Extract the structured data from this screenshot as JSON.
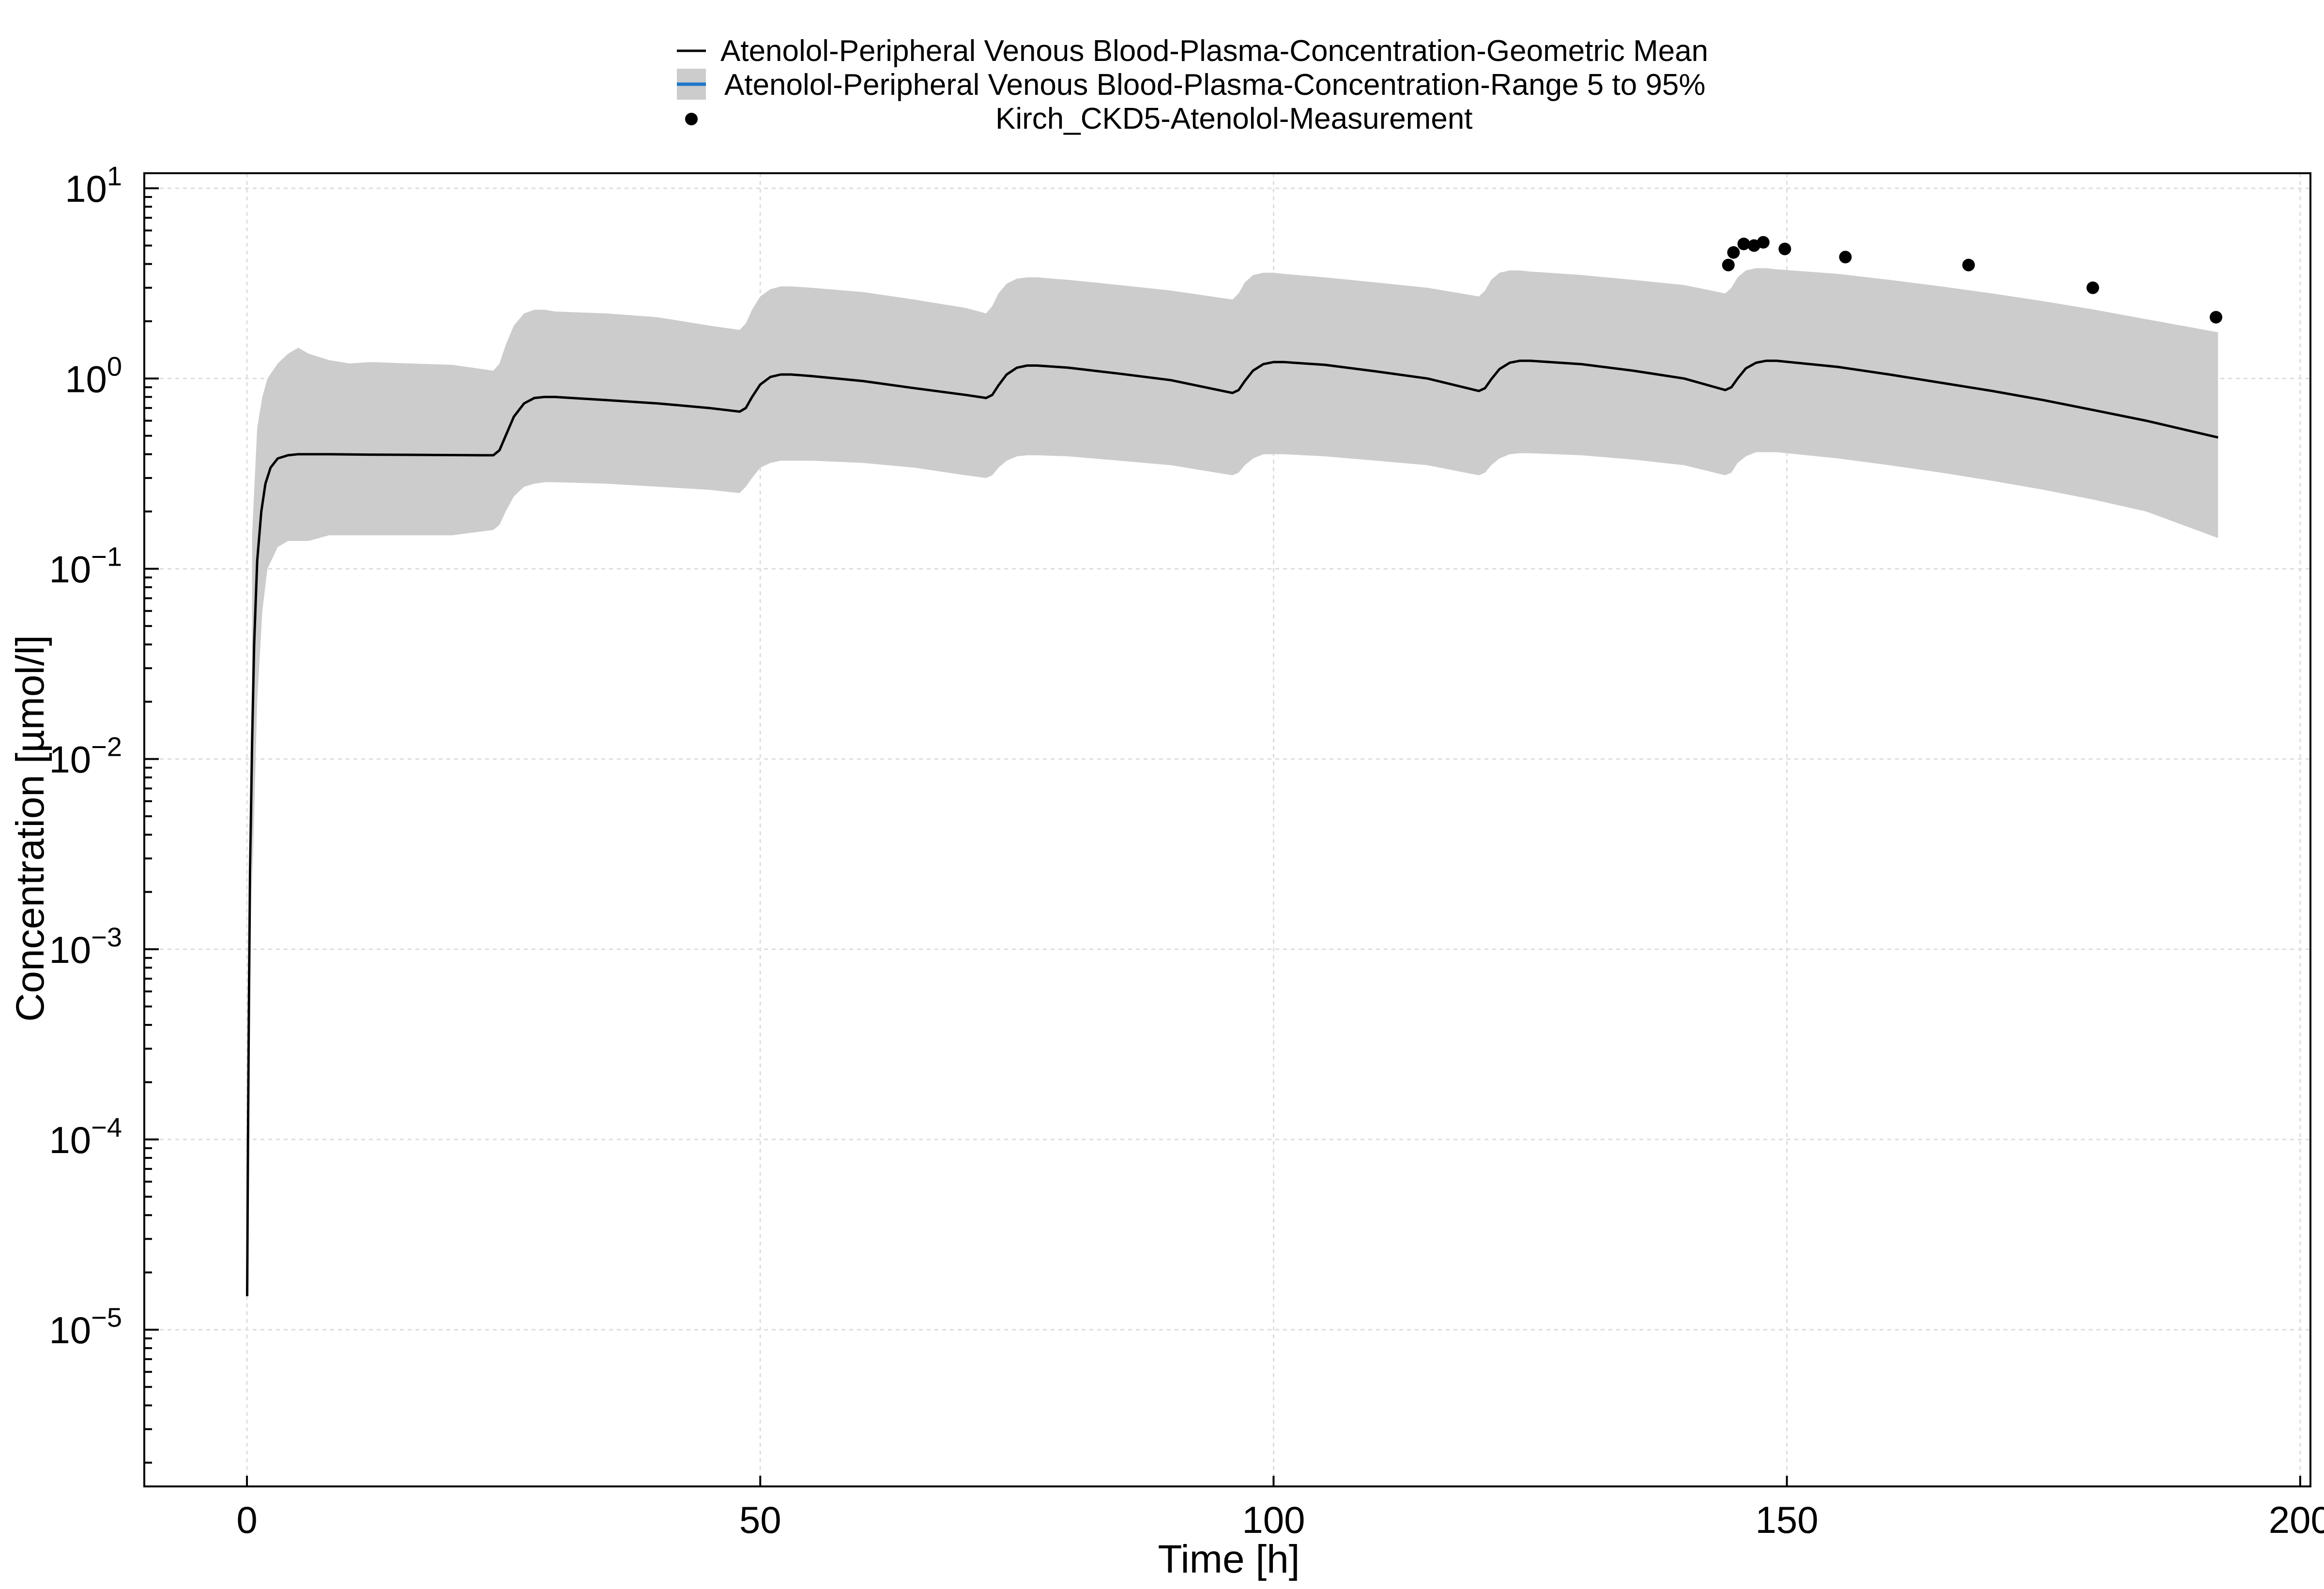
{
  "chart_data": {
    "type": "line",
    "title": "",
    "xlabel": "Time [h]",
    "ylabel": "Concentration [µmol/l]",
    "x_scale": "linear",
    "y_scale": "log",
    "xlim": [
      -10,
      201
    ],
    "ylim": [
      1.5e-06,
      12
    ],
    "x_ticks": [
      0,
      50,
      100,
      150,
      200
    ],
    "x_tick_labels": [
      "0",
      "50",
      "100",
      "150",
      "200"
    ],
    "y_ticks": [
      1e-05,
      0.0001,
      0.001,
      0.01,
      0.1,
      1.0,
      10.0
    ],
    "y_tick_labels": [
      {
        "base": "10",
        "exp": "−5"
      },
      {
        "base": "10",
        "exp": "−4"
      },
      {
        "base": "10",
        "exp": "−3"
      },
      {
        "base": "10",
        "exp": "−2"
      },
      {
        "base": "10",
        "exp": "−1"
      },
      {
        "base": "10",
        "exp": "0"
      },
      {
        "base": "10",
        "exp": "1"
      }
    ],
    "grid": true,
    "legend_position": "top-center",
    "legend": [
      {
        "label": "Atenolol-Peripheral Venous Blood-Plasma-Concentration-Geometric Mean",
        "kind": "line"
      },
      {
        "label": "Atenolol-Peripheral Venous Blood-Plasma-Concentration-Range 5 to 95%",
        "kind": "band"
      },
      {
        "label": "Kirch_CKD5-Atenolol-Measurement",
        "kind": "marker"
      }
    ],
    "colors": {
      "mean": "#000000",
      "band": "#cccccc",
      "band_legend_line": "#1f77c8",
      "measurement": "#000000",
      "grid": "#dddddd"
    },
    "series": [
      {
        "kind": "line",
        "x": [
          0.02,
          0.1,
          0.2,
          0.3,
          0.5,
          0.7,
          1.0,
          1.4,
          1.8,
          2.3,
          3.0,
          4.0,
          5.0,
          8,
          12,
          16,
          20,
          23,
          24,
          24.6,
          25.2,
          26,
          27,
          28,
          29,
          30,
          35,
          40,
          45,
          48,
          48.6,
          49.2,
          50,
          51,
          52,
          53,
          55,
          60,
          65,
          70,
          72,
          72.6,
          73.2,
          74,
          75,
          76,
          77,
          80,
          85,
          90,
          96,
          96.6,
          97.2,
          98,
          99,
          100,
          101,
          105,
          110,
          115,
          120,
          120.6,
          121.2,
          122,
          123,
          124,
          125,
          130,
          135,
          140,
          144,
          144.6,
          145.2,
          146,
          147,
          148,
          149,
          155,
          160,
          165,
          170,
          175,
          180,
          185,
          192
        ],
        "y": [
          1.5e-05,
          0.0001,
          0.0006,
          0.0025,
          0.012,
          0.04,
          0.11,
          0.2,
          0.28,
          0.34,
          0.38,
          0.395,
          0.4,
          0.4,
          0.398,
          0.397,
          0.396,
          0.395,
          0.395,
          0.42,
          0.5,
          0.63,
          0.74,
          0.79,
          0.8,
          0.8,
          0.77,
          0.74,
          0.7,
          0.67,
          0.7,
          0.8,
          0.93,
          1.02,
          1.05,
          1.05,
          1.03,
          0.97,
          0.89,
          0.82,
          0.79,
          0.82,
          0.92,
          1.05,
          1.14,
          1.17,
          1.17,
          1.14,
          1.06,
          0.98,
          0.84,
          0.87,
          0.97,
          1.1,
          1.19,
          1.22,
          1.22,
          1.18,
          1.09,
          1.0,
          0.86,
          0.89,
          0.99,
          1.12,
          1.21,
          1.24,
          1.24,
          1.19,
          1.1,
          1.0,
          0.87,
          0.9,
          1.0,
          1.13,
          1.21,
          1.24,
          1.24,
          1.15,
          1.05,
          0.95,
          0.86,
          0.77,
          0.68,
          0.6,
          0.49
        ]
      },
      {
        "kind": "band",
        "x": [
          0.5,
          1.0,
          1.5,
          2.0,
          3.0,
          4.0,
          5.0,
          6,
          8,
          10,
          12,
          16,
          20,
          24,
          24.6,
          25.2,
          26,
          27,
          28,
          29,
          30,
          35,
          40,
          45,
          48,
          48.6,
          49.2,
          50,
          51,
          52,
          53,
          55,
          60,
          65,
          70,
          72,
          72.6,
          73.2,
          74,
          75,
          76,
          77,
          80,
          85,
          90,
          96,
          96.6,
          97.2,
          98,
          99,
          100,
          101,
          105,
          110,
          115,
          120,
          120.6,
          121.2,
          122,
          123,
          124,
          125,
          130,
          135,
          140,
          144,
          144.6,
          145.2,
          146,
          147,
          148,
          149,
          155,
          160,
          165,
          170,
          175,
          180,
          185,
          192
        ],
        "upper": [
          0.15,
          0.55,
          0.8,
          1.0,
          1.2,
          1.35,
          1.45,
          1.35,
          1.25,
          1.2,
          1.22,
          1.2,
          1.18,
          1.1,
          1.2,
          1.5,
          1.9,
          2.2,
          2.3,
          2.3,
          2.25,
          2.2,
          2.1,
          1.9,
          1.8,
          1.95,
          2.3,
          2.7,
          2.95,
          3.05,
          3.05,
          3.0,
          2.85,
          2.6,
          2.35,
          2.2,
          2.4,
          2.8,
          3.15,
          3.35,
          3.4,
          3.4,
          3.3,
          3.1,
          2.9,
          2.6,
          2.8,
          3.2,
          3.5,
          3.6,
          3.6,
          3.55,
          3.4,
          3.2,
          3.0,
          2.7,
          2.9,
          3.3,
          3.6,
          3.7,
          3.7,
          3.65,
          3.5,
          3.3,
          3.1,
          2.8,
          3.0,
          3.4,
          3.7,
          3.8,
          3.8,
          3.75,
          3.55,
          3.3,
          3.05,
          2.8,
          2.55,
          2.3,
          2.05,
          1.75
        ],
        "lower": [
          0.002,
          0.02,
          0.06,
          0.1,
          0.13,
          0.14,
          0.14,
          0.14,
          0.15,
          0.15,
          0.15,
          0.15,
          0.15,
          0.16,
          0.17,
          0.2,
          0.24,
          0.27,
          0.28,
          0.285,
          0.285,
          0.28,
          0.27,
          0.26,
          0.25,
          0.27,
          0.3,
          0.34,
          0.36,
          0.37,
          0.37,
          0.37,
          0.36,
          0.34,
          0.31,
          0.3,
          0.31,
          0.34,
          0.37,
          0.39,
          0.395,
          0.395,
          0.39,
          0.37,
          0.35,
          0.31,
          0.32,
          0.35,
          0.38,
          0.4,
          0.4,
          0.4,
          0.39,
          0.37,
          0.35,
          0.31,
          0.32,
          0.35,
          0.38,
          0.4,
          0.405,
          0.405,
          0.395,
          0.375,
          0.35,
          0.31,
          0.32,
          0.36,
          0.39,
          0.41,
          0.41,
          0.41,
          0.38,
          0.35,
          0.32,
          0.29,
          0.26,
          0.23,
          0.2,
          0.145
        ]
      },
      {
        "kind": "scatter",
        "x": [
          144.3,
          144.8,
          145.8,
          146.8,
          147.7,
          149.8,
          155.7,
          167.7,
          179.8,
          191.8
        ],
        "y": [
          3.95,
          4.6,
          5.1,
          5.0,
          5.2,
          4.8,
          4.35,
          3.95,
          3.0,
          2.1
        ]
      }
    ]
  }
}
